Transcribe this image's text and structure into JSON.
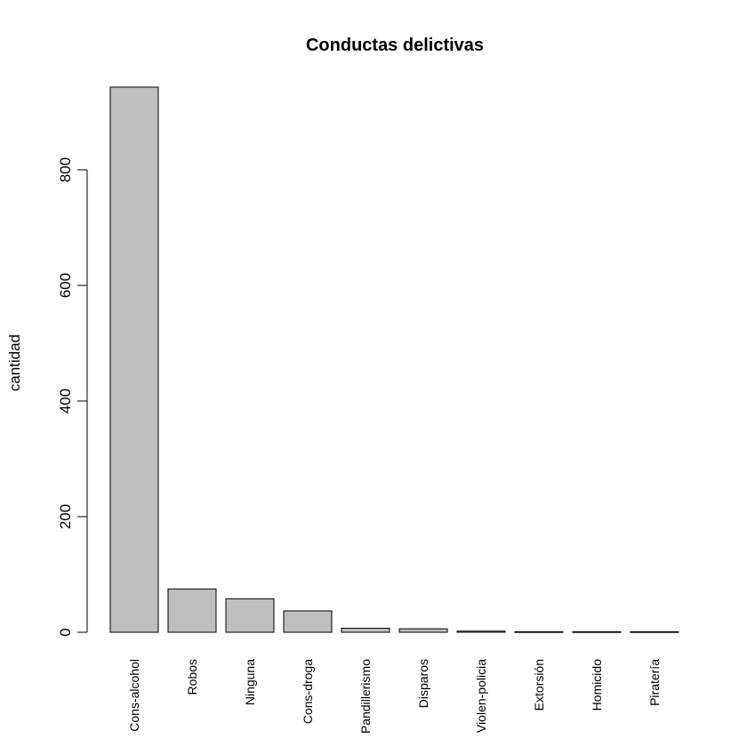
{
  "chart_data": {
    "type": "bar",
    "title": "Conductas delictivas",
    "xlabel": "",
    "ylabel": "cantidad",
    "categories": [
      "Cons-alcohol",
      "Robos",
      "Ninguna",
      "Cons-droga",
      "Pandillerismo",
      "Disparos",
      "Violen-policia",
      "Extorsión",
      "Homicido",
      "Piratería"
    ],
    "values": [
      943,
      75,
      58,
      37,
      7,
      6,
      2,
      1,
      1,
      1
    ],
    "ylim": [
      0,
      943
    ],
    "yticks": [
      "0",
      "200",
      "400",
      "600",
      "800"
    ],
    "grid": false,
    "bar_color": "#bebebe",
    "border_color": "#000000"
  }
}
